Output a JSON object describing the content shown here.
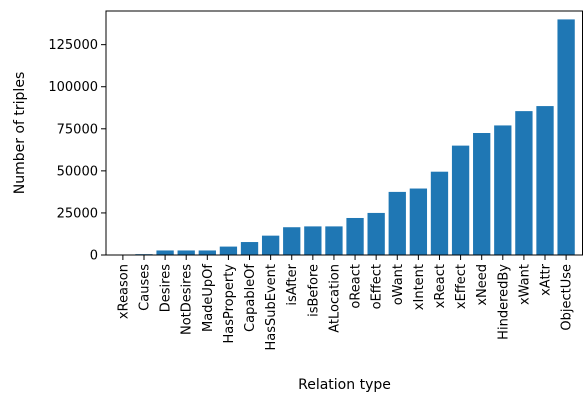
{
  "chart_data": {
    "type": "bar",
    "title": "",
    "xlabel": "Relation type",
    "ylabel": "Number of triples",
    "categories": [
      "xReason",
      "Causes",
      "Desires",
      "NotDesires",
      "MadeUpOf",
      "HasProperty",
      "CapableOf",
      "HasSubEvent",
      "isAfter",
      "isBefore",
      "AtLocation",
      "oReact",
      "oEffect",
      "oWant",
      "xIntent",
      "xReact",
      "xEffect",
      "xNeed",
      "HinderedBy",
      "xWant",
      "xAttr",
      "ObjectUse"
    ],
    "values": [
      300,
      500,
      2700,
      2700,
      2700,
      5000,
      7700,
      11500,
      16500,
      17000,
      17000,
      22000,
      25000,
      37500,
      39500,
      49500,
      65000,
      72500,
      77000,
      85500,
      88500,
      140000
    ],
    "ylim": [
      0,
      145000
    ],
    "yticks": [
      0,
      25000,
      50000,
      75000,
      100000,
      125000
    ],
    "ytick_labels": [
      "0",
      "25000",
      "50000",
      "75000",
      "100000",
      "125000"
    ],
    "bar_color": "#1f77b4",
    "grid": false,
    "legend": "none"
  }
}
